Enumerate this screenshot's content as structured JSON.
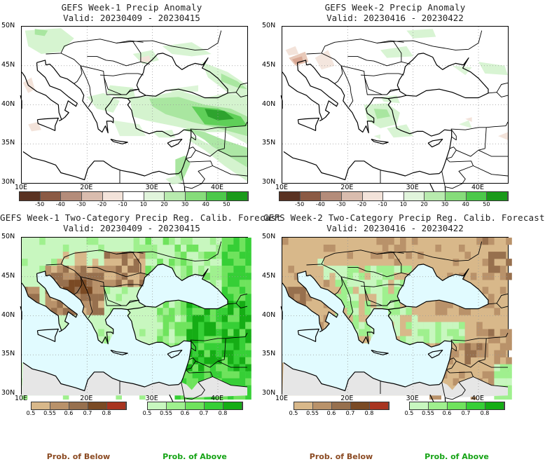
{
  "panels": [
    {
      "title": "GEFS Week-1 Precip Anomaly",
      "valid": "Valid: 20230409 - 20230415",
      "kind": "anomaly"
    },
    {
      "title": "GEFS Week-2 Precip Anomaly",
      "valid": "Valid: 20230416 - 20230422",
      "kind": "anomaly"
    },
    {
      "title": "GEFS Week-1 Two-Category Precip Reg. Calib. Forecast",
      "valid": "Valid: 20230409 - 20230415",
      "kind": "prob"
    },
    {
      "title": "GEFS Week-2 Two-Category Precip Reg. Calib. Forecast",
      "valid": "Valid: 20230416 - 20230422",
      "kind": "prob"
    }
  ],
  "lat_labels": [
    "50N",
    "45N",
    "40N",
    "35N",
    "30N"
  ],
  "lon_labels": [
    "10E",
    "20E",
    "30E",
    "40E"
  ],
  "anomaly_colorbar": {
    "ticks": [
      "-50",
      "-40",
      "-30",
      "-20",
      "-10",
      "10",
      "20",
      "30",
      "40",
      "50"
    ],
    "colors": [
      "#5a3222",
      "#8b5a44",
      "#b48c7a",
      "#d9bcae",
      "#f3e3da",
      "#ffffff",
      "#e1f5dc",
      "#b8ebae",
      "#86dc7a",
      "#4cc84a",
      "#1a9a1a"
    ]
  },
  "below_colorbar": {
    "ticks": [
      "0.5",
      "0.55",
      "0.6",
      "0.7",
      "0.8"
    ],
    "colors": [
      "#d8b88a",
      "#b9926a",
      "#97704e",
      "#7a4a24",
      "#a83420"
    ],
    "label": "Prob. of Below"
  },
  "above_colorbar": {
    "ticks": [
      "0.5",
      "0.55",
      "0.6",
      "0.7",
      "0.8"
    ],
    "colors": [
      "#c8f7bf",
      "#9ff08e",
      "#6fe35d",
      "#36cf36",
      "#15ad15"
    ],
    "label": "Prob. of Above"
  },
  "colors": {
    "sea_prob": "#e1fbff",
    "land_nodata": "#e6e6e6",
    "title_text": "#222222",
    "below_label": "#8b4a22",
    "above_label": "#15a315"
  }
}
